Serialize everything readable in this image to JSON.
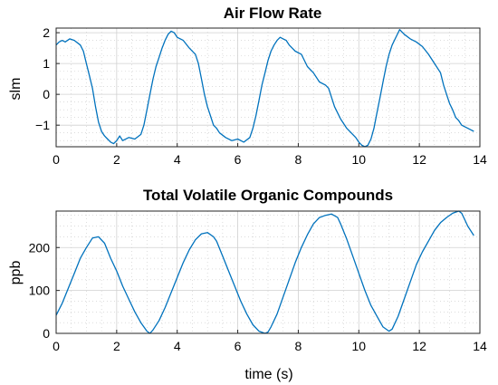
{
  "chart_data": [
    {
      "type": "line",
      "title": "Air Flow Rate",
      "xlabel": "",
      "ylabel": "slm",
      "xlim": [
        0,
        14
      ],
      "ylim": [
        -1.7,
        2.15
      ],
      "xticks": [
        "0",
        "2",
        "4",
        "6",
        "8",
        "10",
        "12",
        "14"
      ],
      "yticks": [
        "−1",
        "0",
        "1",
        "2"
      ],
      "grid": "on (major and minor)",
      "color": "#0072BD",
      "series": [
        {
          "x": [
            0.0,
            0.1,
            0.2,
            0.3,
            0.45,
            0.6,
            0.8,
            0.9,
            1.0,
            1.1,
            1.2,
            1.3,
            1.4,
            1.5,
            1.6,
            1.7,
            1.8,
            1.9,
            2.0,
            2.1,
            2.2,
            2.4,
            2.6,
            2.8,
            2.9,
            3.0,
            3.1,
            3.2,
            3.3,
            3.4,
            3.5,
            3.6,
            3.7,
            3.8,
            3.9,
            4.0,
            4.2,
            4.4,
            4.6,
            4.7,
            4.8,
            4.9,
            5.0,
            5.1,
            5.2,
            5.3,
            5.4,
            5.6,
            5.8,
            6.0,
            6.2,
            6.4,
            6.5,
            6.6,
            6.7,
            6.8,
            6.9,
            7.0,
            7.1,
            7.2,
            7.3,
            7.4,
            7.5,
            7.6,
            7.7,
            7.8,
            7.9,
            8.1,
            8.3,
            8.5,
            8.7,
            8.9,
            9.0,
            9.2,
            9.4,
            9.6,
            9.8,
            9.9,
            10.0,
            10.1,
            10.2,
            10.3,
            10.4,
            10.5,
            10.6,
            10.7,
            10.8,
            10.9,
            11.0,
            11.1,
            11.2,
            11.3,
            11.35,
            11.5,
            11.7,
            11.9,
            12.1,
            12.3,
            12.5,
            12.7,
            12.8,
            12.9,
            13.0,
            13.1,
            13.2,
            13.3,
            13.4,
            13.5,
            13.6,
            13.7,
            13.8
          ],
          "y": [
            1.6,
            1.7,
            1.75,
            1.7,
            1.8,
            1.75,
            1.6,
            1.4,
            1.0,
            0.6,
            0.2,
            -0.4,
            -0.9,
            -1.2,
            -1.35,
            -1.45,
            -1.55,
            -1.6,
            -1.5,
            -1.35,
            -1.5,
            -1.4,
            -1.45,
            -1.3,
            -1.0,
            -0.5,
            0.0,
            0.5,
            0.9,
            1.2,
            1.5,
            1.75,
            1.95,
            2.05,
            2.0,
            1.85,
            1.75,
            1.5,
            1.3,
            1.0,
            0.5,
            0.0,
            -0.4,
            -0.7,
            -1.0,
            -1.1,
            -1.25,
            -1.4,
            -1.5,
            -1.45,
            -1.55,
            -1.4,
            -1.1,
            -0.7,
            -0.2,
            0.3,
            0.7,
            1.1,
            1.4,
            1.6,
            1.75,
            1.85,
            1.8,
            1.75,
            1.6,
            1.5,
            1.4,
            1.3,
            0.9,
            0.7,
            0.4,
            0.3,
            0.2,
            -0.4,
            -0.8,
            -1.1,
            -1.3,
            -1.4,
            -1.55,
            -1.65,
            -1.7,
            -1.65,
            -1.45,
            -1.1,
            -0.6,
            -0.1,
            0.4,
            0.9,
            1.3,
            1.6,
            1.8,
            2.0,
            2.1,
            1.95,
            1.8,
            1.7,
            1.55,
            1.3,
            1.0,
            0.7,
            0.3,
            0.0,
            -0.3,
            -0.5,
            -0.75,
            -0.85,
            -1.0,
            -1.05,
            -1.1,
            -1.15,
            -1.2
          ]
        }
      ]
    },
    {
      "type": "line",
      "title": "Total Volatile Organic Compounds",
      "xlabel": "time (s)",
      "ylabel": "ppb",
      "xlim": [
        0,
        14
      ],
      "ylim": [
        0,
        285
      ],
      "xticks": [
        "0",
        "2",
        "4",
        "6",
        "8",
        "10",
        "12",
        "14"
      ],
      "yticks": [
        "0",
        "100",
        "200"
      ],
      "grid": "on (major and minor)",
      "color": "#0072BD",
      "series": [
        {
          "x": [
            0.0,
            0.2,
            0.4,
            0.6,
            0.8,
            1.0,
            1.2,
            1.4,
            1.6,
            1.8,
            2.0,
            2.2,
            2.4,
            2.6,
            2.8,
            3.0,
            3.1,
            3.2,
            3.4,
            3.6,
            3.8,
            4.0,
            4.2,
            4.4,
            4.6,
            4.8,
            5.0,
            5.2,
            5.3,
            5.5,
            5.7,
            5.9,
            6.1,
            6.3,
            6.5,
            6.7,
            6.9,
            7.0,
            7.1,
            7.3,
            7.5,
            7.7,
            7.9,
            8.1,
            8.3,
            8.5,
            8.7,
            8.9,
            9.1,
            9.3,
            9.4,
            9.6,
            9.8,
            10.0,
            10.2,
            10.4,
            10.6,
            10.8,
            11.0,
            11.1,
            11.3,
            11.5,
            11.7,
            11.9,
            12.1,
            12.3,
            12.5,
            12.7,
            12.9,
            13.1,
            13.3,
            13.4,
            13.5,
            13.6,
            13.8
          ],
          "y": [
            42,
            70,
            105,
            140,
            175,
            200,
            222,
            225,
            210,
            175,
            145,
            110,
            80,
            50,
            25,
            5,
            0,
            8,
            30,
            60,
            95,
            130,
            165,
            195,
            218,
            232,
            235,
            225,
            215,
            180,
            145,
            110,
            75,
            45,
            20,
            5,
            0,
            3,
            15,
            45,
            85,
            125,
            165,
            200,
            230,
            255,
            270,
            275,
            278,
            270,
            255,
            220,
            180,
            140,
            100,
            65,
            40,
            15,
            5,
            10,
            40,
            80,
            120,
            160,
            190,
            215,
            240,
            258,
            270,
            280,
            285,
            280,
            265,
            250,
            228
          ]
        }
      ]
    }
  ]
}
